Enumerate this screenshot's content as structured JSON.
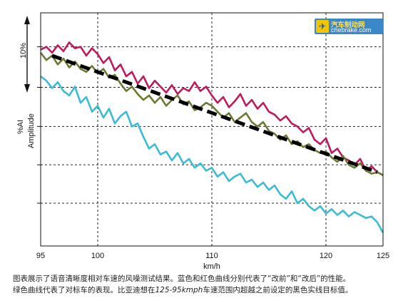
{
  "chart_data": {
    "type": "line",
    "xlabel": "km/h",
    "ylabel": "Amplitude",
    "ylabel_secondary": "%AI",
    "scale_marker": "10%",
    "xlim": [
      95,
      125
    ],
    "x_ticks": [
      95,
      100,
      110,
      120,
      125
    ],
    "grid": true,
    "series": [
      {
        "color": "#c01a5e",
        "style": "solid",
        "x": [
          95,
          95.5,
          96,
          96.5,
          97,
          97.5,
          98,
          98.5,
          99,
          99.5,
          100,
          100.5,
          101,
          101.5,
          102,
          102.5,
          103,
          103.5,
          104,
          104.5,
          105,
          105.5,
          106,
          106.5,
          107,
          107.5,
          108,
          108.5,
          109,
          109.5,
          110,
          110.5,
          111,
          111.5,
          112,
          112.5,
          113,
          113.5,
          114,
          114.5,
          115,
          115.5,
          116,
          116.5,
          117,
          117.5,
          118,
          118.5,
          119,
          119.5,
          120,
          120.5,
          121,
          121.5,
          122,
          122.5,
          123,
          123.5,
          124,
          124.5,
          125
        ],
        "y": [
          9.8,
          10.0,
          9.6,
          10.1,
          9.7,
          10.3,
          9.9,
          10.0,
          9.4,
          9.9,
          9.5,
          8.9,
          9.3,
          8.4,
          8.8,
          8.0,
          8.3,
          7.5,
          8.0,
          7.2,
          7.7,
          7.3,
          6.9,
          7.4,
          6.8,
          7.2,
          7.0,
          7.6,
          7.0,
          7.3,
          6.7,
          6.2,
          6.6,
          5.9,
          6.3,
          6.8,
          6.0,
          6.4,
          5.8,
          6.2,
          5.6,
          5.4,
          5.0,
          5.3,
          4.8,
          4.6,
          4.2,
          4.5,
          3.7,
          3.4,
          3.8,
          2.8,
          3.1,
          2.5,
          2.3,
          2.0,
          2.4,
          1.6,
          1.9,
          1.5,
          1.3
        ]
      },
      {
        "color": "#6b7a32",
        "style": "solid",
        "x": [
          95,
          95.5,
          96,
          96.5,
          97,
          97.5,
          98,
          98.5,
          99,
          99.5,
          100,
          100.5,
          101,
          101.5,
          102,
          102.5,
          103,
          103.5,
          104,
          104.5,
          105,
          105.5,
          106,
          106.5,
          107,
          107.5,
          108,
          108.5,
          109,
          109.5,
          110,
          110.5,
          111,
          111.5,
          112,
          112.5,
          113,
          113.5,
          114,
          114.5,
          115,
          115.5,
          116,
          116.5,
          117,
          117.5,
          118,
          118.5,
          119,
          119.5,
          120,
          120.5,
          121,
          121.5,
          122,
          122.5,
          123,
          123.5,
          124,
          124.5,
          125
        ],
        "y": [
          9.6,
          9.1,
          9.4,
          8.8,
          9.2,
          8.6,
          9.0,
          8.5,
          8.3,
          8.7,
          8.2,
          8.5,
          7.9,
          8.1,
          7.5,
          7.0,
          7.3,
          6.8,
          6.4,
          6.7,
          6.2,
          6.6,
          6.0,
          6.4,
          6.7,
          6.1,
          6.3,
          5.7,
          5.9,
          6.2,
          6.0,
          5.6,
          5.2,
          5.5,
          4.9,
          5.2,
          5.5,
          4.9,
          4.6,
          4.9,
          4.3,
          4.1,
          3.7,
          4.0,
          3.4,
          3.6,
          3.2,
          3.4,
          3.0,
          2.8,
          2.9,
          2.5,
          2.2,
          2.6,
          2.0,
          1.8,
          2.1,
          1.6,
          1.4,
          1.5,
          1.3
        ]
      },
      {
        "color": "#3bbcd6",
        "style": "solid",
        "x": [
          95,
          95.5,
          96,
          96.5,
          97,
          97.5,
          98,
          98.5,
          99,
          99.5,
          100,
          100.5,
          101,
          101.5,
          102,
          102.5,
          103,
          103.5,
          104,
          104.5,
          105,
          105.5,
          106,
          106.5,
          107,
          107.5,
          108,
          108.5,
          109,
          109.5,
          110,
          110.5,
          111,
          111.5,
          112,
          112.5,
          113,
          113.5,
          114,
          114.5,
          115,
          115.5,
          116,
          116.5,
          117,
          117.5,
          118,
          118.5,
          119,
          119.5,
          120,
          120.5,
          121,
          121.5,
          122,
          122.5,
          123,
          123.5,
          124,
          124.5,
          125
        ],
        "y": [
          8.0,
          7.7,
          7.2,
          7.6,
          7.0,
          6.7,
          7.3,
          6.2,
          6.6,
          5.6,
          6.0,
          5.2,
          5.8,
          4.8,
          5.3,
          5.6,
          4.6,
          4.8,
          3.9,
          3.1,
          3.4,
          2.7,
          2.9,
          2.3,
          2.8,
          2.1,
          2.4,
          1.8,
          2.1,
          1.6,
          1.8,
          1.2,
          1.5,
          0.9,
          1.2,
          1.4,
          0.8,
          1.0,
          0.5,
          0.8,
          0.3,
          0.6,
          0.0,
          -0.3,
          0.2,
          -0.6,
          -0.3,
          -0.8,
          -1.1,
          -0.8,
          -1.3,
          -1.0,
          -1.4,
          -1.1,
          -1.5,
          -1.2,
          -1.4,
          -1.6,
          -1.5,
          -1.9,
          -2.6
        ]
      },
      {
        "color": "#000000",
        "style": "dashed",
        "x": [
          96,
          124.5
        ],
        "y": [
          9.4,
          1.5
        ]
      }
    ]
  },
  "caption": {
    "line1": "图表展示了语音清晰度相对车速的风噪测试结果。蓝色和红色曲线分别代表了“改前”和“改后”的性能。",
    "line2_a": "绿色曲线代表了对标车的表现。比亚迪想在",
    "line2_italic": "125-95kmph",
    "line2_b": "车速范围内超越之前设定的黑色实线目标值。"
  },
  "watermark": {
    "line1": "汽车制动网",
    "line2": "chebrake.com"
  }
}
